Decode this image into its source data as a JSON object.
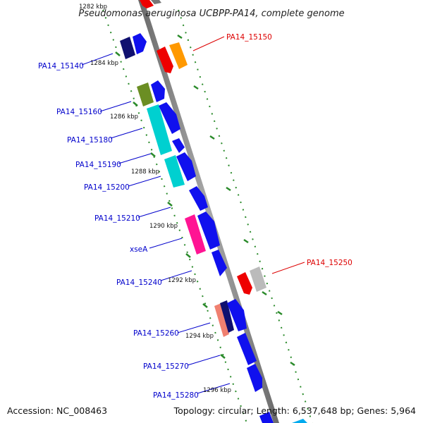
{
  "title": "Pseudomonas aeruginosa UCBPP-PA14, complete genome",
  "accession": "Accession: NC_008463",
  "summary": "Topology: circular; Length: 6,537,648 bp; Genes: 5,964",
  "ticks": {
    "top_partial": "1282 kbp",
    "labels": [
      "1284 kbp",
      "1286 kbp",
      "1288 kbp",
      "1290 kbp",
      "1292 kbp",
      "1294 kbp",
      "1296 kbp"
    ]
  },
  "gene_labels": [
    {
      "text": "PA14_15140",
      "color": "#0000cc",
      "side": "left"
    },
    {
      "text": "PA14_15150",
      "color": "#dd0000",
      "side": "right"
    },
    {
      "text": "PA14_15160",
      "color": "#0000cc",
      "side": "left"
    },
    {
      "text": "PA14_15180",
      "color": "#0000cc",
      "side": "left"
    },
    {
      "text": "PA14_15190",
      "color": "#0000cc",
      "side": "left"
    },
    {
      "text": "PA14_15200",
      "color": "#0000cc",
      "side": "left"
    },
    {
      "text": "PA14_15210",
      "color": "#0000cc",
      "side": "left"
    },
    {
      "text": "xseA",
      "color": "#0000cc",
      "side": "left"
    },
    {
      "text": "PA14_15240",
      "color": "#0000cc",
      "side": "left"
    },
    {
      "text": "PA14_15250",
      "color": "#dd0000",
      "side": "right"
    },
    {
      "text": "PA14_15260",
      "color": "#0000cc",
      "side": "left"
    },
    {
      "text": "PA14_15270",
      "color": "#0000cc",
      "side": "left"
    },
    {
      "text": "PA14_15280",
      "color": "#0000cc",
      "side": "left"
    }
  ],
  "colors": {
    "backbone": "#888888",
    "tick_dots": "#2a8a2a",
    "blue": "#1010ee",
    "navy": "#101070",
    "olive": "#6b8e23",
    "cyan": "#00d0d0",
    "magenta": "#ff1493",
    "red": "#ee0000",
    "orange": "#ff9900",
    "grey": "#bbbbbb",
    "salmon": "#f08070"
  }
}
